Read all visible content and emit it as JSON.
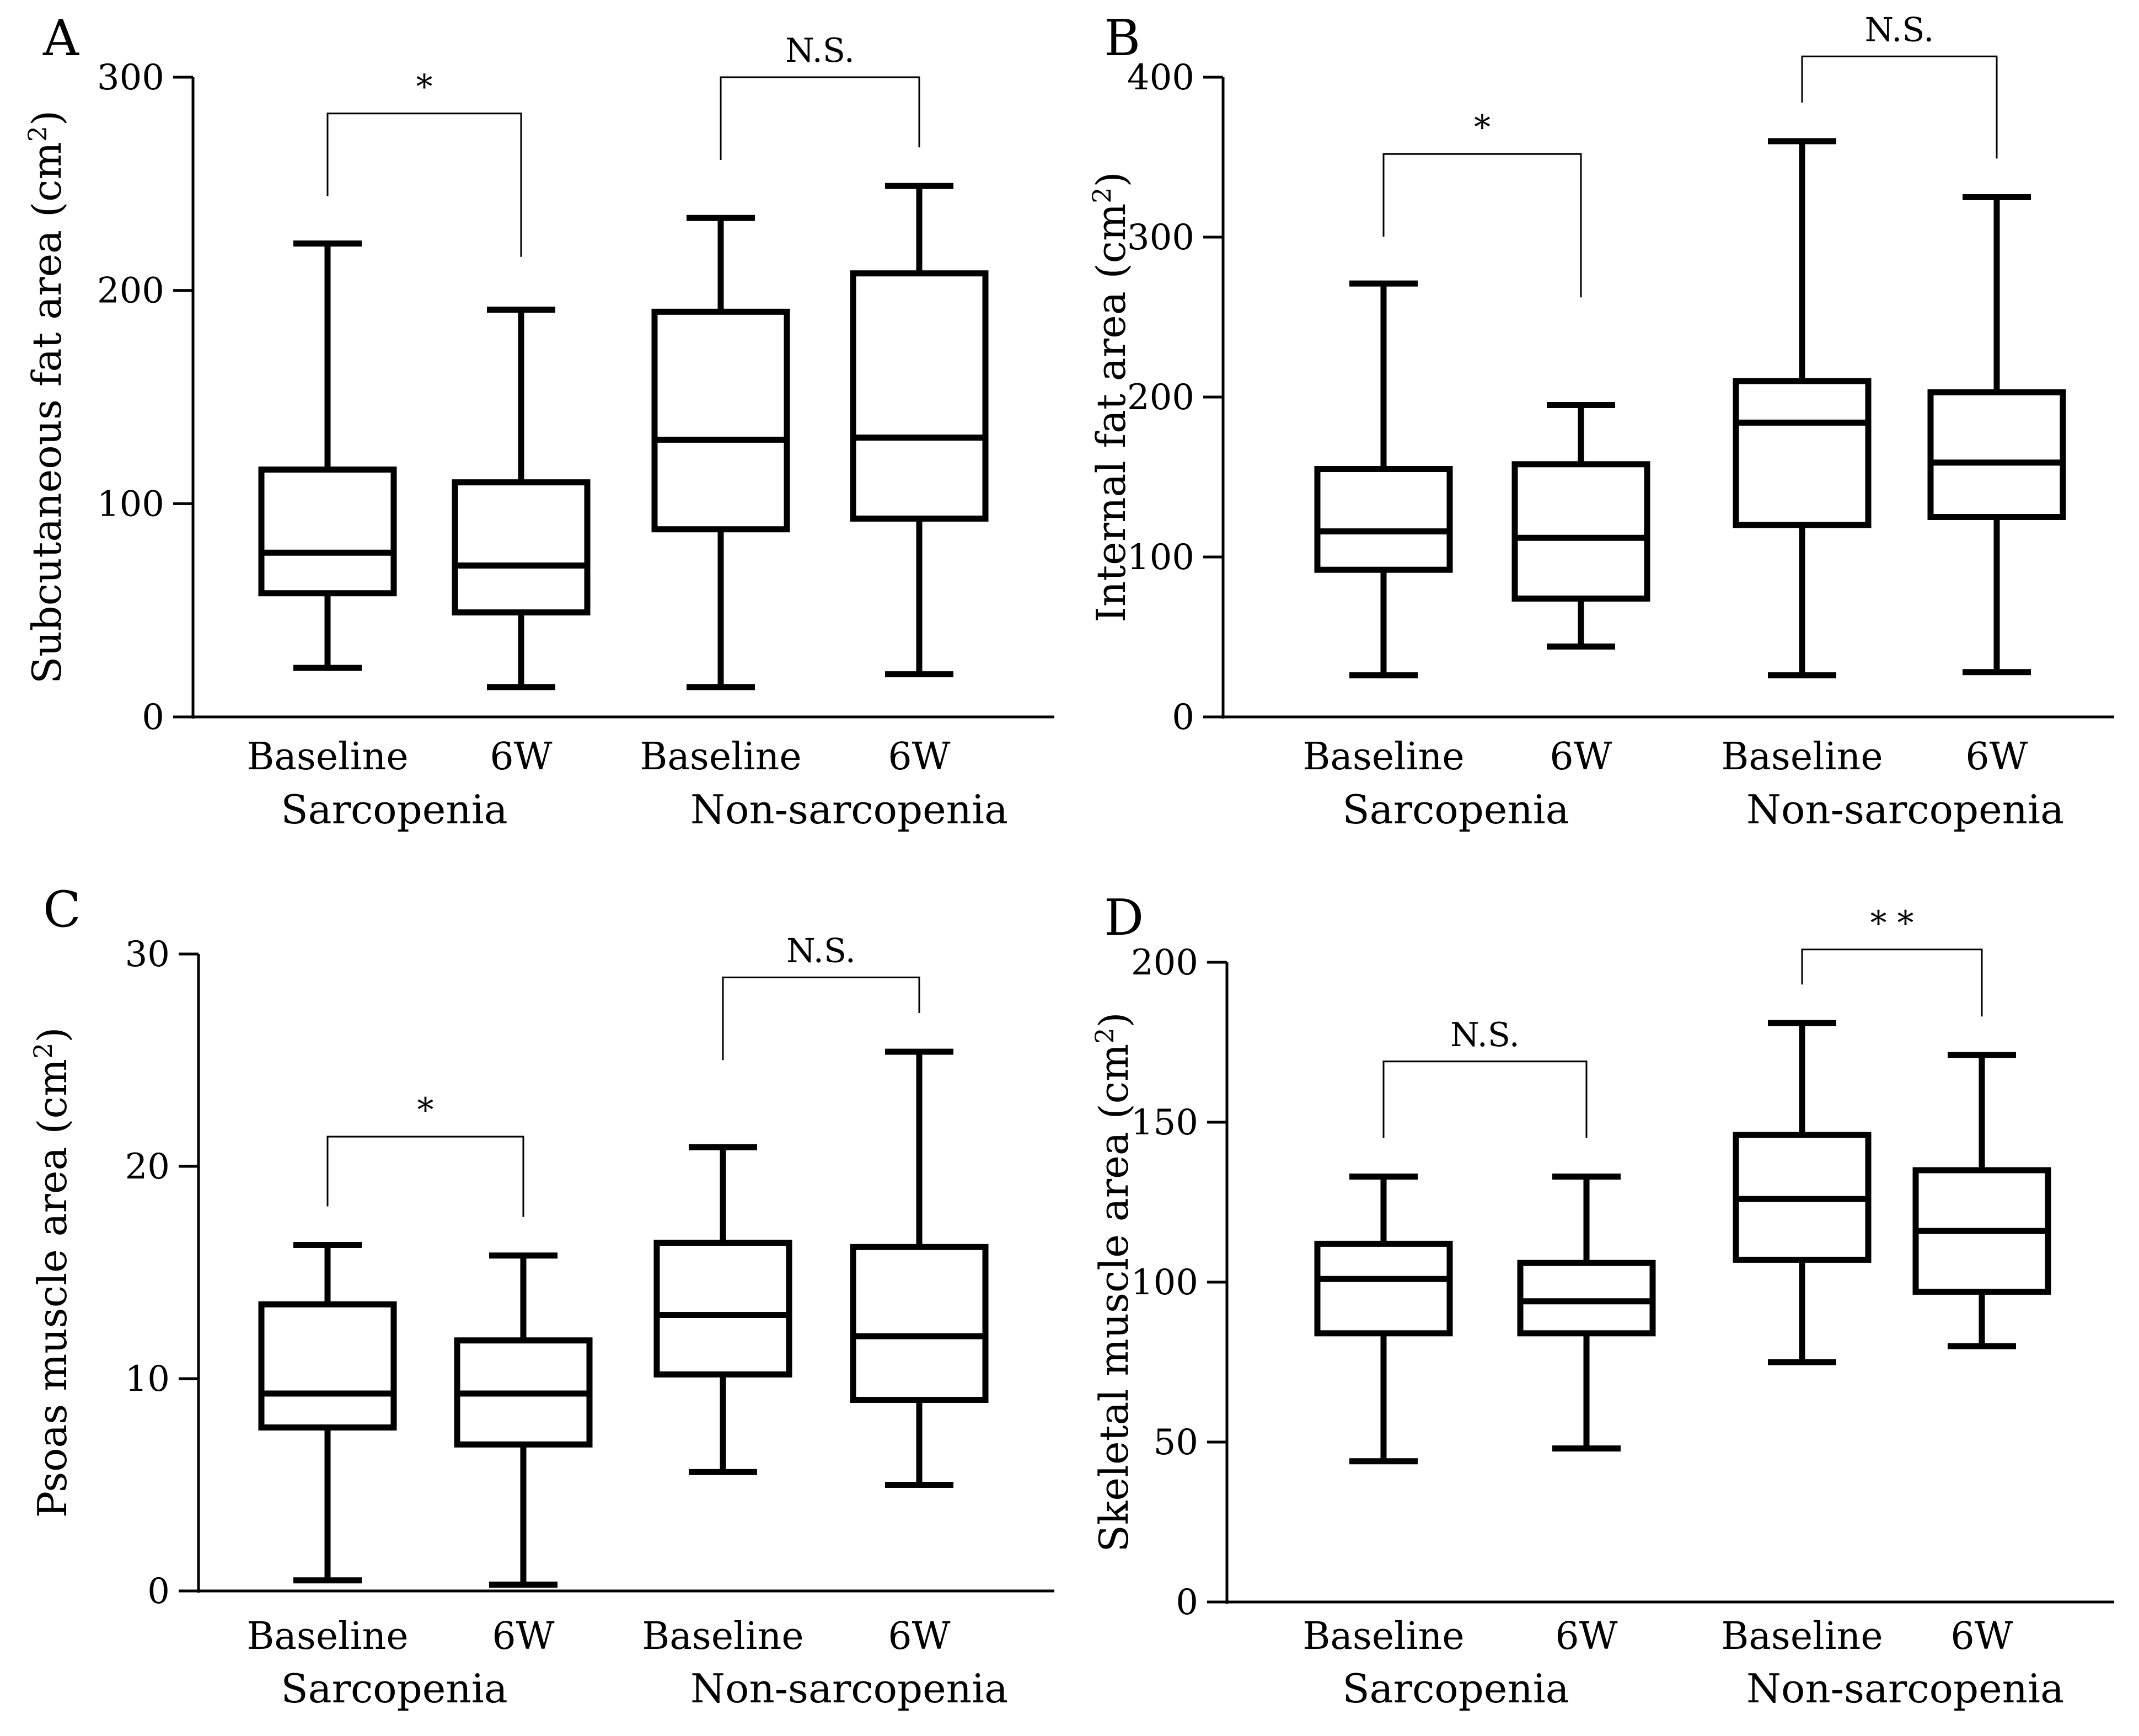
{
  "chart_data": [
    {
      "panel": "A",
      "type": "boxplot",
      "ylabel": "Subcutaneous fat area (cm2)",
      "ylabel_main": "Subcutaneous fat area (cm",
      "ylabel_sup": "2",
      "ylabel_end": ")",
      "ylim": [
        0,
        300
      ],
      "yticks": [
        0,
        100,
        200,
        300
      ],
      "yticks_text": [
        "0",
        "100",
        "200",
        "300"
      ],
      "categories": [
        "Baseline",
        "6W",
        "Baseline",
        "6W"
      ],
      "groups": [
        "Sarcopenia",
        "Non-sarcopenia"
      ],
      "boxes": [
        {
          "whisker_low": 23,
          "q1": 58,
          "median": 77,
          "q3": 116,
          "whisker_high": 222
        },
        {
          "whisker_low": 14,
          "q1": 49,
          "median": 71,
          "q3": 110,
          "whisker_high": 191
        },
        {
          "whisker_low": 14,
          "q1": 88,
          "median": 130,
          "q3": 190,
          "whisker_high": 234
        },
        {
          "whisker_low": 20,
          "q1": 93,
          "median": 131,
          "q3": 208,
          "whisker_high": 249
        }
      ],
      "comparisons": [
        {
          "from": 0,
          "to": 1,
          "label": "*",
          "bar_y": 283
        },
        {
          "from": 2,
          "to": 3,
          "label": "N.S.",
          "bar_y": 300
        }
      ]
    },
    {
      "panel": "B",
      "type": "boxplot",
      "ylabel": "Internal fat area (cm2)",
      "ylabel_main": "Internal fat area (cm",
      "ylabel_sup": "2",
      "ylabel_end": ")",
      "ylim": [
        0,
        400
      ],
      "yticks": [
        0,
        100,
        200,
        300,
        400
      ],
      "yticks_text": [
        "0",
        "100",
        "200",
        "300",
        "400"
      ],
      "categories": [
        "Baseline",
        "6W",
        "Baseline",
        "6W"
      ],
      "groups": [
        "Sarcopenia",
        "Non-sarcopenia"
      ],
      "boxes": [
        {
          "whisker_low": 26,
          "q1": 92,
          "median": 116,
          "q3": 155,
          "whisker_high": 271
        },
        {
          "whisker_low": 44,
          "q1": 74,
          "median": 112,
          "q3": 158,
          "whisker_high": 195
        },
        {
          "whisker_low": 26,
          "q1": 120,
          "median": 184,
          "q3": 210,
          "whisker_high": 360
        },
        {
          "whisker_low": 28,
          "q1": 125,
          "median": 159,
          "q3": 203,
          "whisker_high": 325
        }
      ],
      "comparisons": [
        {
          "from": 0,
          "to": 1,
          "label": "*",
          "bar_y": 352
        },
        {
          "from": 2,
          "to": 3,
          "label": "N.S.",
          "bar_y": 413
        }
      ]
    },
    {
      "panel": "C",
      "type": "boxplot",
      "ylabel": "Psoas muscle area (cm2)",
      "ylabel_main": "Psoas muscle area (cm",
      "ylabel_sup": "2",
      "ylabel_end": ")",
      "ylim": [
        0,
        30
      ],
      "yticks": [
        0,
        10,
        20,
        30
      ],
      "yticks_text": [
        "0",
        "10",
        "20",
        "30"
      ],
      "categories": [
        "Baseline",
        "6W",
        "Baseline",
        "6W"
      ],
      "groups": [
        "Sarcopenia",
        "Non-sarcopenia"
      ],
      "boxes": [
        {
          "whisker_low": 0.5,
          "q1": 7.7,
          "median": 9.3,
          "q3": 13.5,
          "whisker_high": 16.3
        },
        {
          "whisker_low": 0.3,
          "q1": 6.9,
          "median": 9.3,
          "q3": 11.8,
          "whisker_high": 15.8
        },
        {
          "whisker_low": 5.6,
          "q1": 10.2,
          "median": 13.0,
          "q3": 16.4,
          "whisker_high": 20.9
        },
        {
          "whisker_low": 5.0,
          "q1": 9.0,
          "median": 12.0,
          "q3": 16.2,
          "whisker_high": 25.4
        }
      ],
      "comparisons": [
        {
          "from": 0,
          "to": 1,
          "label": "*",
          "bar_y": 21.4
        },
        {
          "from": 2,
          "to": 3,
          "label": "N.S.",
          "bar_y": 28.9
        }
      ]
    },
    {
      "panel": "D",
      "type": "boxplot",
      "ylabel": "Skeletal muscle area (cm2)",
      "ylabel_main": "Skeletal muscle area (cm",
      "ylabel_sup": "2",
      "ylabel_end": ")",
      "ylim": [
        0,
        200
      ],
      "yticks": [
        0,
        50,
        100,
        150,
        200
      ],
      "yticks_text": [
        "0",
        "50",
        "100",
        "150",
        "200"
      ],
      "categories": [
        "Baseline",
        "6W",
        "Baseline",
        "6W"
      ],
      "groups": [
        "Sarcopenia",
        "Non-sarcopenia"
      ],
      "boxes": [
        {
          "whisker_low": 44,
          "q1": 84,
          "median": 101,
          "q3": 112,
          "whisker_high": 133
        },
        {
          "whisker_low": 48,
          "q1": 84,
          "median": 94,
          "q3": 106,
          "whisker_high": 133
        },
        {
          "whisker_low": 75,
          "q1": 107,
          "median": 126,
          "q3": 146,
          "whisker_high": 181
        },
        {
          "whisker_low": 80,
          "q1": 97,
          "median": 116,
          "q3": 135,
          "whisker_high": 171
        }
      ],
      "comparisons": [
        {
          "from": 0,
          "to": 1,
          "label": "N.S.",
          "bar_y": 169
        },
        {
          "from": 2,
          "to": 3,
          "label": "* *",
          "bar_y": 204
        }
      ]
    }
  ]
}
